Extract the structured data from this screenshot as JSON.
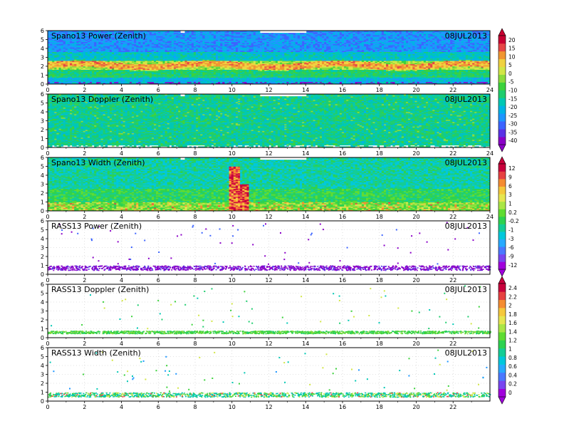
{
  "chart_data": [
    {
      "type": "heatmap",
      "title": "Spano13 Power (Zenith)",
      "date": "08JUL2013",
      "x_ticks": [
        "0",
        "2",
        "4",
        "6",
        "8",
        "10",
        "12",
        "14",
        "16",
        "18",
        "20",
        "22",
        "24"
      ],
      "y_ticks": [
        "0",
        "1",
        "2",
        "3",
        "4",
        "5",
        "6"
      ],
      "xlim": [
        0,
        24
      ],
      "ylim": [
        0,
        6
      ],
      "colorbar": [
        "-40",
        "-35",
        "-30",
        "-25",
        "-20",
        "-15",
        "-10",
        "-5",
        "0",
        "5",
        "10",
        "15",
        "20"
      ],
      "description_rows": [
        {
          "y_range": [
            0.0,
            0.8
          ],
          "value_approx": -20
        },
        {
          "y_range": [
            0.8,
            1.6
          ],
          "value_approx": -12
        },
        {
          "y_range": [
            1.6,
            2.6
          ],
          "value_approx": -2
        },
        {
          "y_range": [
            2.6,
            3.6
          ],
          "value_approx": -18
        },
        {
          "y_range": [
            3.6,
            6.0
          ],
          "value_approx": -25
        }
      ]
    },
    {
      "type": "heatmap",
      "title": "Spano13 Doppler (Zenith)",
      "date": "08JUL2013",
      "x_ticks": [
        "0",
        "2",
        "4",
        "6",
        "8",
        "10",
        "12",
        "14",
        "16",
        "18",
        "20",
        "22",
        "24"
      ],
      "y_ticks": [
        "0",
        "1",
        "2",
        "3",
        "4",
        "5",
        "6"
      ],
      "xlim": [
        0,
        24
      ],
      "ylim": [
        0,
        6
      ],
      "description_rows": [
        {
          "y_range": [
            0.0,
            6.0
          ],
          "value_approx": -15
        }
      ]
    },
    {
      "type": "heatmap",
      "title": "Spano13 Width (Zenith)",
      "date": "08JUL2013",
      "x_ticks": [
        "0",
        "2",
        "4",
        "6",
        "8",
        "10",
        "12",
        "14",
        "16",
        "18",
        "20",
        "22",
        "24"
      ],
      "y_ticks": [
        "0",
        "1",
        "2",
        "3",
        "4",
        "5",
        "6"
      ],
      "xlim": [
        0,
        24
      ],
      "ylim": [
        0,
        6
      ],
      "colorbar": [
        "-12",
        "-9",
        "-6",
        "-3",
        "-1",
        "-0.2",
        "0.2",
        "1",
        "3",
        "6",
        "9",
        "12"
      ],
      "description_rows": [
        {
          "y_range": [
            0.0,
            1.0
          ],
          "value_approx": 1
        },
        {
          "y_range": [
            1.0,
            2.5
          ],
          "value_approx": -1
        },
        {
          "y_range": [
            2.5,
            6.0
          ],
          "value_approx": -3
        }
      ]
    },
    {
      "type": "scatter",
      "title": "RASS13 Power (Zenith)",
      "date": "08JUL2013",
      "x_ticks": [
        "0",
        "2",
        "4",
        "6",
        "8",
        "10",
        "12",
        "14",
        "16",
        "18",
        "20",
        "22"
      ],
      "y_ticks": [
        "0",
        "1",
        "2",
        "3",
        "4",
        "5",
        "6"
      ],
      "xlim": [
        0,
        24
      ],
      "ylim": [
        0,
        6
      ],
      "band_y": [
        0.5,
        1.0
      ],
      "band_value_approx": -12
    },
    {
      "type": "scatter",
      "title": "RASS13 Doppler (Zenith)",
      "date": "08JUL2013",
      "x_ticks": [
        "0",
        "2",
        "4",
        "6",
        "8",
        "10",
        "12",
        "14",
        "16",
        "18",
        "20",
        "22"
      ],
      "y_ticks": [
        "0",
        "1",
        "2",
        "3",
        "4",
        "5",
        "6"
      ],
      "xlim": [
        0,
        24
      ],
      "ylim": [
        0,
        6
      ],
      "colorbar": [
        "0",
        "0.2",
        "0.4",
        "0.6",
        "0.8",
        "1",
        "1.2",
        "1.4",
        "1.6",
        "1.8",
        "2",
        "2.2",
        "2.4"
      ],
      "band_y": [
        0.5,
        0.8
      ],
      "band_value_approx": 1.2
    },
    {
      "type": "scatter",
      "title": "RASS13 Width (Zenith)",
      "date": "08JUL2013",
      "x_ticks": [
        "0",
        "2",
        "4",
        "6",
        "8",
        "10",
        "12",
        "14",
        "16",
        "18",
        "20",
        "22"
      ],
      "y_ticks": [
        "0",
        "1",
        "2",
        "3",
        "4",
        "5",
        "6"
      ],
      "xlim": [
        0,
        24
      ],
      "ylim": [
        0,
        6
      ],
      "band_y": [
        0.5,
        1.0
      ],
      "band_value_approx": 1.0
    }
  ],
  "colors": {
    "scale_a": [
      "#8a00c8",
      "#5a32e6",
      "#3c64ff",
      "#1e96ff",
      "#00b4e6",
      "#00c8b4",
      "#1ecd6e",
      "#3cd23c",
      "#8cdc3c",
      "#d2e646",
      "#f0d240",
      "#f09632",
      "#e64646",
      "#c80032"
    ],
    "scale_b": [
      "#a000dc",
      "#7846f0",
      "#4b78ff",
      "#28aaff",
      "#00c8dc",
      "#14cd96",
      "#2dd250",
      "#5fdc32",
      "#aae646",
      "#e6e650",
      "#f5c83c",
      "#f58c32",
      "#e64141",
      "#c8003c"
    ]
  }
}
